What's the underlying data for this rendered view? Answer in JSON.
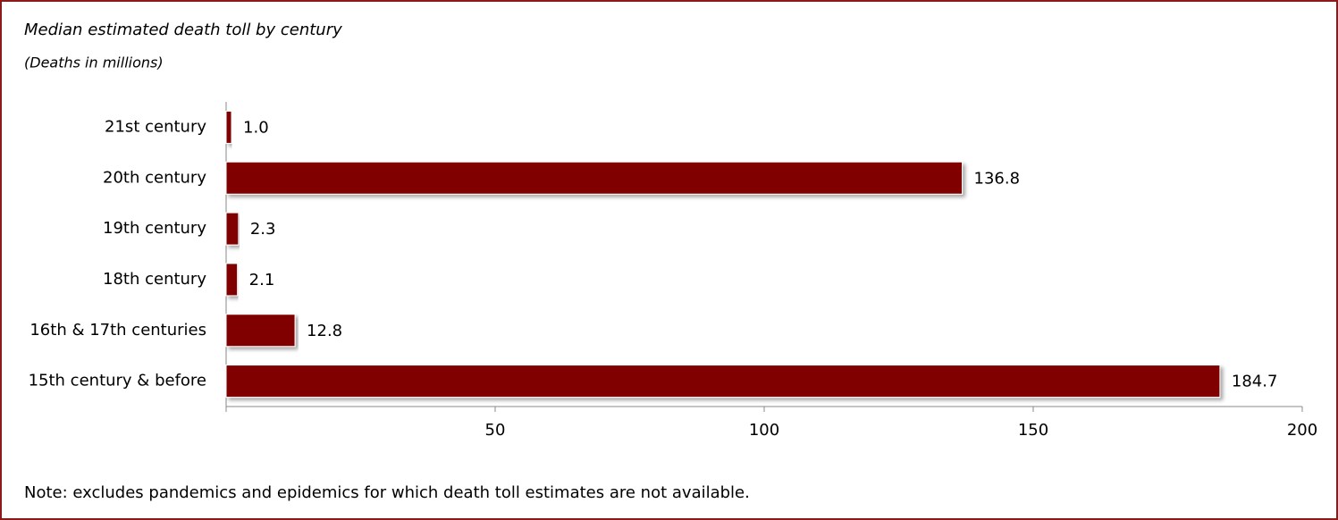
{
  "chart_data": {
    "type": "bar",
    "orientation": "horizontal",
    "title": "Median estimated death toll by century",
    "subtitle": "(Deaths in millions)",
    "note": "Note: excludes pandemics and epidemics for which death toll estimates are not available.",
    "categories": [
      "21st century",
      "20th century",
      "19th century",
      "18th century",
      "16th & 17th centuries",
      "15th century & before"
    ],
    "values": [
      1.0,
      136.8,
      2.3,
      2.1,
      12.8,
      184.7
    ],
    "value_labels": [
      "1.0",
      "136.8",
      "2.3",
      "2.1",
      "12.8",
      "184.7"
    ],
    "color": "#800000",
    "xlim": [
      0,
      200
    ],
    "xticks": [
      50,
      100,
      150,
      200
    ],
    "grid": false
  }
}
